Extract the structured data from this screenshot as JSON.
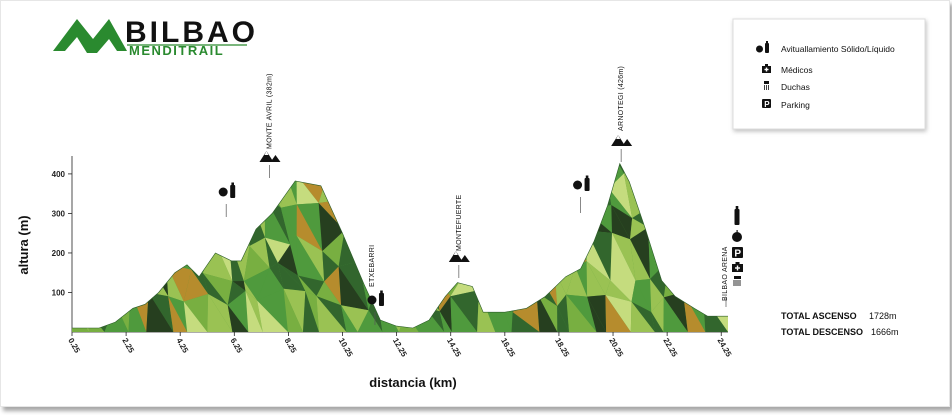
{
  "logo": {
    "line1": "BILBAO",
    "line2": "MENDITRAIL"
  },
  "legend": {
    "items": [
      {
        "icon": "food-drink-icon",
        "label": "Avituallamiento Sólido/Líquido"
      },
      {
        "icon": "medic-icon",
        "label": "Médicos"
      },
      {
        "icon": "shower-icon",
        "label": "Duchas"
      },
      {
        "icon": "parking-icon",
        "label": "Parking"
      }
    ]
  },
  "chart_data": {
    "type": "area",
    "xlabel": "distancia (km)",
    "ylabel": "altura (m)",
    "xlim": [
      0,
      24.25
    ],
    "ylim": [
      0,
      420
    ],
    "x_ticks": [
      "0.25",
      "2.25",
      "4.25",
      "6.25",
      "8.25",
      "10.25",
      "12.25",
      "14.25",
      "16.25",
      "18.25",
      "20.25",
      "22.25",
      "24.25"
    ],
    "y_ticks": [
      "100",
      "200",
      "300",
      "400"
    ],
    "profile": {
      "x": [
        0,
        0.25,
        1.0,
        1.6,
        2.25,
        2.7,
        3.2,
        3.8,
        4.25,
        4.7,
        5.3,
        5.9,
        6.25,
        6.8,
        7.4,
        8.25,
        9.2,
        10.0,
        10.8,
        11.4,
        12.0,
        12.6,
        13.2,
        13.8,
        14.25,
        14.8,
        15.2,
        16.0,
        16.8,
        17.5,
        18.25,
        18.8,
        19.3,
        19.8,
        20.25,
        20.6,
        21.2,
        21.8,
        22.3,
        23.0,
        23.5,
        24.25
      ],
      "y": [
        10,
        10,
        10,
        25,
        60,
        70,
        100,
        150,
        170,
        140,
        200,
        180,
        180,
        260,
        300,
        382,
        370,
        250,
        120,
        30,
        15,
        10,
        30,
        90,
        125,
        115,
        50,
        50,
        60,
        90,
        140,
        160,
        230,
        320,
        426,
        380,
        260,
        130,
        90,
        60,
        40,
        40
      ]
    },
    "peaks": [
      {
        "name": "MONTE AVRIL (382m)",
        "x": 7.3
      },
      {
        "name": "MONTEFUERTE",
        "x": 14.3
      },
      {
        "name": "ARNOTEGI (426m)",
        "x": 20.3
      }
    ],
    "points": [
      {
        "name": "ETXEBARRI",
        "x": 11.2,
        "services": [
          "food-drink"
        ]
      },
      {
        "name": "BILBAO ARENA",
        "x": 24.25,
        "services": [
          "food-drink",
          "parking",
          "medic",
          "shower"
        ]
      }
    ],
    "aid_stations_x": [
      5.7,
      11.2,
      18.8,
      24.25
    ],
    "total_ascenso": {
      "label": "TOTAL ASCENSO",
      "value": "1728m"
    },
    "total_descenso": {
      "label": "TOTAL DESCENSO",
      "value": "1666m"
    },
    "colors": {
      "dark_green": "#2d5d2a",
      "mid_green": "#4f9a3d",
      "light_green": "#a7c957",
      "yellow_green": "#d9e88a",
      "orange": "#c8892a",
      "brand_green": "#2a8a2f"
    }
  }
}
